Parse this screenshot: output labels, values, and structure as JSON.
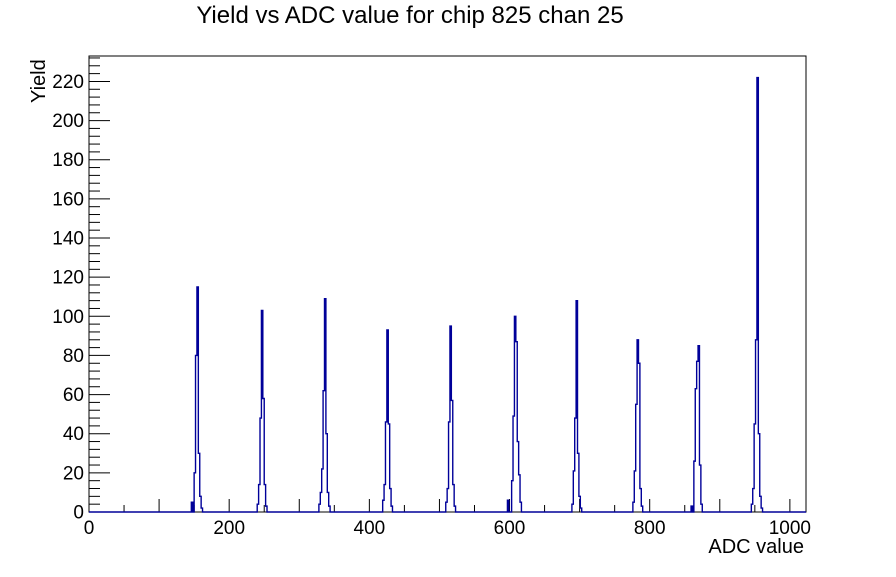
{
  "chart_data": {
    "type": "bar",
    "subtype": "root-histogram-outline",
    "title": "Yield vs ADC value for chip 825 chan 25",
    "xlabel": "ADC value",
    "ylabel": "Yield",
    "line_color": "#000099",
    "frame_color": "#000000",
    "background_color": "#ffffff",
    "grid": false,
    "legend": "none",
    "x_axis": {
      "min": 0,
      "max": 1023,
      "major_step": 100,
      "minor_step": 50,
      "tick_labels": [
        0,
        200,
        400,
        600,
        800,
        1000
      ]
    },
    "y_axis": {
      "min": 0,
      "max": 233,
      "major_step": 20,
      "minor_step": 4,
      "tick_labels": [
        0,
        20,
        40,
        60,
        80,
        100,
        120,
        140,
        160,
        180,
        200,
        220
      ]
    },
    "bin_width_adc": 2,
    "spikes": [
      {
        "adc": 155,
        "peak": 115,
        "profile": [
          5,
          0,
          20,
          80,
          115,
          30,
          8,
          2
        ]
      },
      {
        "adc": 247,
        "peak": 103,
        "profile": [
          4,
          14,
          48,
          103,
          58,
          14,
          3
        ]
      },
      {
        "adc": 337,
        "peak": 109,
        "profile": [
          4,
          10,
          22,
          62,
          109,
          40,
          10,
          3
        ]
      },
      {
        "adc": 426,
        "peak": 93,
        "profile": [
          6,
          14,
          46,
          93,
          45,
          12,
          3
        ]
      },
      {
        "adc": 516,
        "peak": 95,
        "profile": [
          5,
          12,
          46,
          95,
          57,
          14,
          3
        ]
      },
      {
        "adc": 608,
        "peak": 100,
        "profile": [
          6,
          0,
          0,
          16,
          49,
          100,
          87,
          36,
          19,
          5
        ]
      },
      {
        "adc": 696,
        "peak": 108,
        "profile": [
          4,
          21,
          48,
          108,
          30,
          8,
          2
        ]
      },
      {
        "adc": 783,
        "peak": 88,
        "profile": [
          5,
          21,
          55,
          88,
          76,
          12,
          3
        ]
      },
      {
        "adc": 870,
        "peak": 85,
        "profile": [
          3,
          0,
          26,
          63,
          77,
          85,
          24,
          4
        ]
      },
      {
        "adc": 954,
        "peak": 222,
        "profile": [
          4,
          12,
          45,
          88,
          222,
          40,
          8,
          2
        ]
      }
    ]
  }
}
